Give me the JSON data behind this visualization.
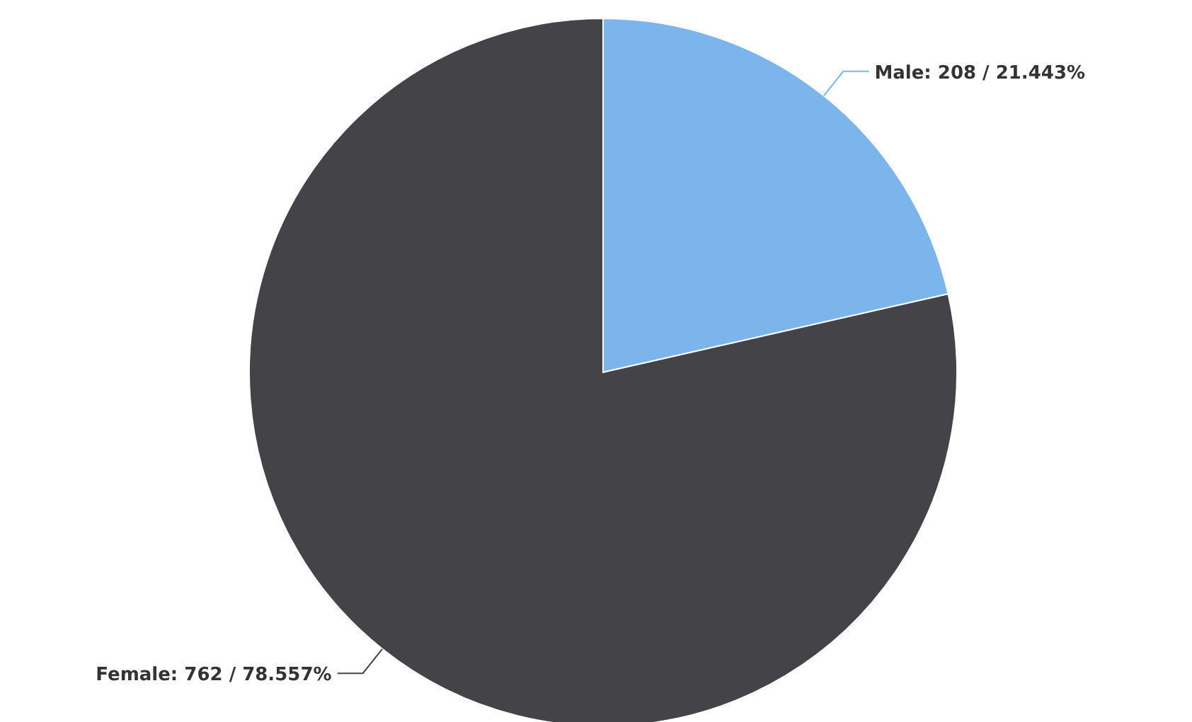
{
  "chart_data": {
    "type": "pie",
    "categories": [
      "Male",
      "Female"
    ],
    "values": [
      208,
      762
    ],
    "colors": [
      "#7cb5ec",
      "#434348"
    ],
    "value_labels": [
      "208 / 21.443%",
      "762 / 78.557%"
    ]
  }
}
